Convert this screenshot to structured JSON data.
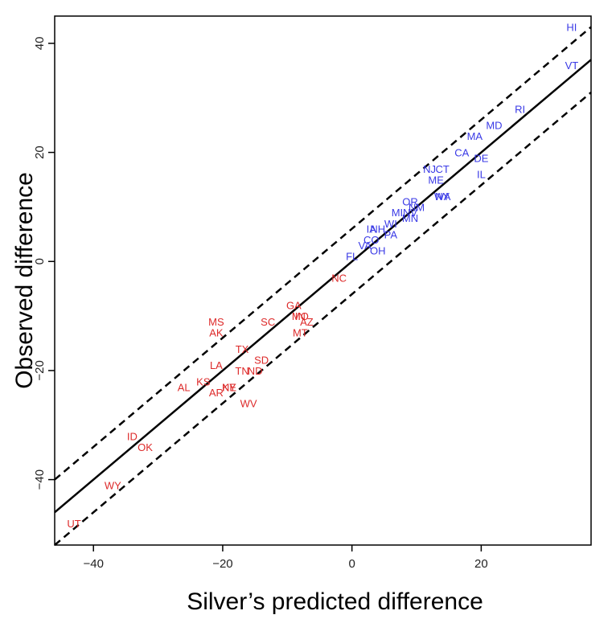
{
  "chart_data": {
    "type": "scatter",
    "xlabel": "Silver’s predicted difference",
    "ylabel": "Observed difference",
    "xlim": [
      -46,
      37
    ],
    "ylim": [
      -52,
      45
    ],
    "x_ticks": [
      -40,
      -20,
      0,
      20
    ],
    "y_ticks": [
      -40,
      -20,
      0,
      20,
      40
    ],
    "x_tick_labels": [
      "−40",
      "−20",
      "0",
      "20"
    ],
    "y_tick_labels": [
      "−40",
      "−20",
      "0",
      "20",
      "40"
    ],
    "grid": false,
    "colors": {
      "blue": "#3a3ae6",
      "red": "#dd2a2a",
      "line": "#000000"
    },
    "reference_lines": [
      {
        "style": "solid",
        "slope": 1,
        "intercept": 0
      },
      {
        "style": "dashed",
        "slope": 1,
        "intercept": 6
      },
      {
        "style": "dashed",
        "slope": 1,
        "intercept": -6
      }
    ],
    "points": [
      {
        "label": "HI",
        "x": 34,
        "y": 43,
        "party": "blue"
      },
      {
        "label": "VT",
        "x": 34,
        "y": 36,
        "party": "blue"
      },
      {
        "label": "RI",
        "x": 26,
        "y": 28,
        "party": "blue"
      },
      {
        "label": "MD",
        "x": 22,
        "y": 25,
        "party": "blue"
      },
      {
        "label": "MA",
        "x": 19,
        "y": 23,
        "party": "blue"
      },
      {
        "label": "CA",
        "x": 17,
        "y": 20,
        "party": "blue"
      },
      {
        "label": "DE",
        "x": 20,
        "y": 19,
        "party": "blue"
      },
      {
        "label": "IL",
        "x": 20,
        "y": 16,
        "party": "blue"
      },
      {
        "label": "NJ",
        "x": 12,
        "y": 17,
        "party": "blue"
      },
      {
        "label": "CT",
        "x": 14,
        "y": 17,
        "party": "blue"
      },
      {
        "label": "ME",
        "x": 13,
        "y": 15,
        "party": "blue"
      },
      {
        "label": "WA",
        "x": 14,
        "y": 12,
        "party": "blue"
      },
      {
        "label": "NY",
        "x": 14,
        "y": 12,
        "party": "blue"
      },
      {
        "label": "OR",
        "x": 9,
        "y": 11,
        "party": "blue"
      },
      {
        "label": "NM",
        "x": 10,
        "y": 10,
        "party": "blue"
      },
      {
        "label": "MI",
        "x": 7,
        "y": 9,
        "party": "blue"
      },
      {
        "label": "NV",
        "x": 9,
        "y": 9,
        "party": "blue"
      },
      {
        "label": "MN",
        "x": 9,
        "y": 8,
        "party": "blue"
      },
      {
        "label": "WI",
        "x": 6,
        "y": 7,
        "party": "blue"
      },
      {
        "label": "IA",
        "x": 3,
        "y": 6,
        "party": "blue"
      },
      {
        "label": "NH",
        "x": 4,
        "y": 6,
        "party": "blue"
      },
      {
        "label": "PA",
        "x": 6,
        "y": 5,
        "party": "blue"
      },
      {
        "label": "CO",
        "x": 3,
        "y": 4,
        "party": "blue"
      },
      {
        "label": "VA",
        "x": 2,
        "y": 3,
        "party": "blue"
      },
      {
        "label": "OH",
        "x": 4,
        "y": 2,
        "party": "blue"
      },
      {
        "label": "FL",
        "x": 0,
        "y": 1,
        "party": "blue"
      },
      {
        "label": "NC",
        "x": -2,
        "y": -3,
        "party": "red"
      },
      {
        "label": "GA",
        "x": -9,
        "y": -8,
        "party": "red"
      },
      {
        "label": "MO",
        "x": -8,
        "y": -10,
        "party": "red"
      },
      {
        "label": "IN",
        "x": -8,
        "y": -10,
        "party": "red"
      },
      {
        "label": "AZ",
        "x": -7,
        "y": -11,
        "party": "red"
      },
      {
        "label": "SC",
        "x": -13,
        "y": -11,
        "party": "red"
      },
      {
        "label": "MT",
        "x": -8,
        "y": -13,
        "party": "red"
      },
      {
        "label": "MS",
        "x": -21,
        "y": -11,
        "party": "red"
      },
      {
        "label": "AK",
        "x": -21,
        "y": -13,
        "party": "red"
      },
      {
        "label": "TX",
        "x": -17,
        "y": -16,
        "party": "red"
      },
      {
        "label": "SD",
        "x": -14,
        "y": -18,
        "party": "red"
      },
      {
        "label": "LA",
        "x": -21,
        "y": -19,
        "party": "red"
      },
      {
        "label": "TN",
        "x": -17,
        "y": -20,
        "party": "red"
      },
      {
        "label": "ND",
        "x": -15,
        "y": -20,
        "party": "red"
      },
      {
        "label": "KS",
        "x": -23,
        "y": -22,
        "party": "red"
      },
      {
        "label": "AL",
        "x": -26,
        "y": -23,
        "party": "red"
      },
      {
        "label": "AR",
        "x": -21,
        "y": -24,
        "party": "red"
      },
      {
        "label": "NE",
        "x": -19,
        "y": -23,
        "party": "red"
      },
      {
        "label": "KY",
        "x": -19,
        "y": -23,
        "party": "red"
      },
      {
        "label": "WV",
        "x": -16,
        "y": -26,
        "party": "red"
      },
      {
        "label": "ID",
        "x": -34,
        "y": -32,
        "party": "red"
      },
      {
        "label": "OK",
        "x": -32,
        "y": -34,
        "party": "red"
      },
      {
        "label": "WY",
        "x": -37,
        "y": -41,
        "party": "red"
      },
      {
        "label": "UT",
        "x": -43,
        "y": -48,
        "party": "red"
      }
    ]
  }
}
